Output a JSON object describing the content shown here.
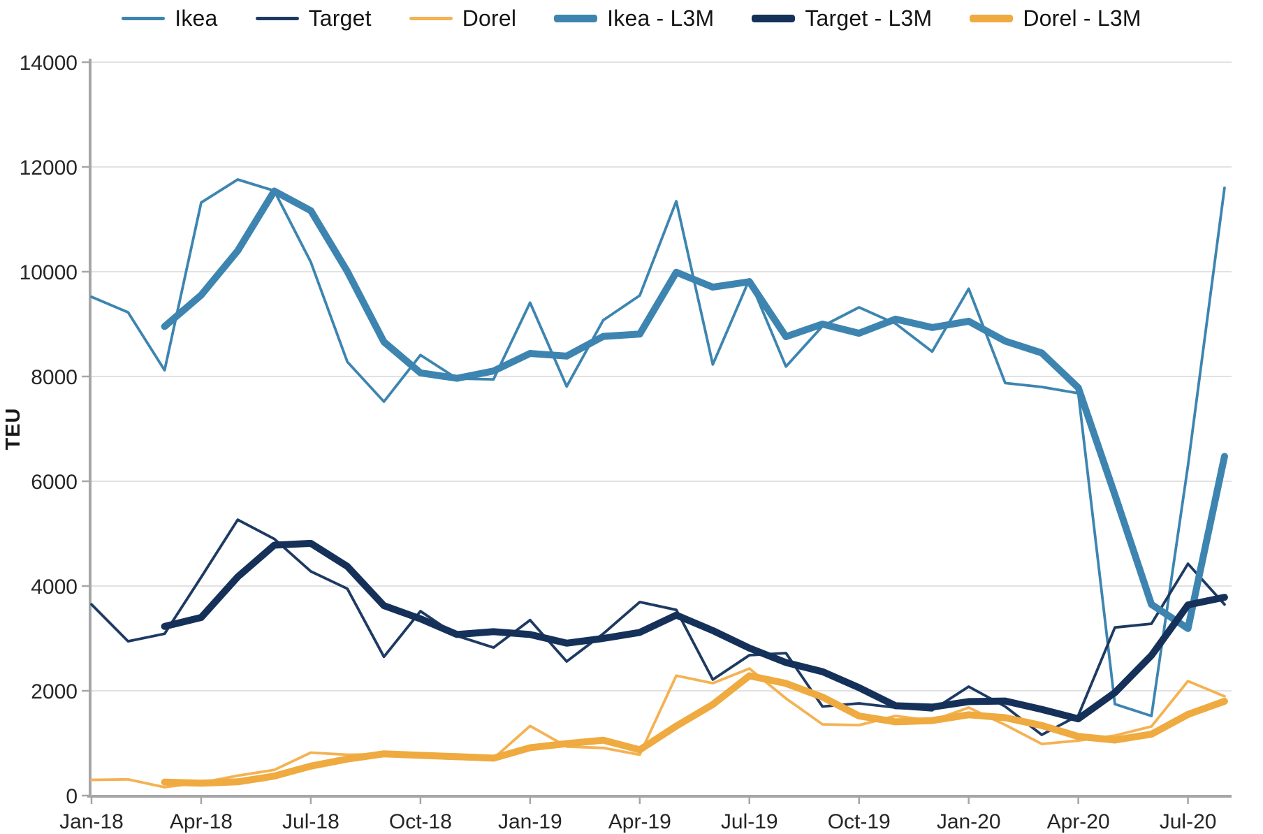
{
  "chart_data": {
    "type": "line",
    "title": "",
    "xlabel": "",
    "ylabel": "TEU",
    "unit": "TEU",
    "ylim": [
      0,
      14000
    ],
    "y_ticks": [
      0,
      2000,
      4000,
      6000,
      8000,
      10000,
      12000,
      14000
    ],
    "grid": "horizontal",
    "legend_position": "top",
    "months": [
      "Jan-18",
      "Feb-18",
      "Mar-18",
      "Apr-18",
      "May-18",
      "Jun-18",
      "Jul-18",
      "Aug-18",
      "Sep-18",
      "Oct-18",
      "Nov-18",
      "Dec-18",
      "Jan-19",
      "Feb-19",
      "Mar-19",
      "Apr-19",
      "May-19",
      "Jun-19",
      "Jul-19",
      "Aug-19",
      "Sep-19",
      "Oct-19",
      "Nov-19",
      "Dec-19",
      "Jan-20",
      "Feb-20",
      "Mar-20",
      "Apr-20",
      "May-20",
      "Jun-20",
      "Jul-20",
      "Aug-20"
    ],
    "x_tick_labels": [
      "Jan-18",
      "Apr-18",
      "Jul-18",
      "Oct-18",
      "Jan-19",
      "Apr-19",
      "Jul-19",
      "Oct-19",
      "Jan-20",
      "Apr-20",
      "Jul-20"
    ],
    "x_tick_month_indices": [
      0,
      3,
      6,
      9,
      12,
      15,
      18,
      21,
      24,
      27,
      30
    ],
    "colors": {
      "ikea": "#3d85b0",
      "ikea_l3m": "#3d85b0",
      "target": "#1d3a62",
      "target_l3m": "#15315a",
      "dorel": "#f4b254",
      "dorel_l3m": "#efaa40",
      "axis": "#a6a6a6",
      "grid": "#d9d9d9",
      "tick_label": "#262626"
    },
    "series": [
      {
        "name": "Ikea",
        "key": "ikea",
        "color": "#3d85b0",
        "weight": "thin",
        "values": [
          9520,
          9225,
          8120,
          11320,
          11760,
          11545,
          10185,
          8280,
          7520,
          8410,
          7960,
          7945,
          9410,
          7810,
          9075,
          9545,
          11345,
          8230,
          9855,
          8190,
          8960,
          9320,
          9010,
          8475,
          9675,
          7875,
          7800,
          7680,
          1745,
          1520,
          6300,
          11600
        ]
      },
      {
        "name": "Target",
        "key": "target",
        "color": "#1d3a62",
        "weight": "thin",
        "values": [
          3650,
          2945,
          3090,
          4170,
          5265,
          4900,
          4280,
          3950,
          2650,
          3520,
          3050,
          2825,
          3350,
          2560,
          3090,
          3695,
          3545,
          2215,
          2680,
          2720,
          1700,
          1760,
          1680,
          1630,
          2080,
          1700,
          1160,
          1530,
          3210,
          3280,
          4425,
          3650
        ]
      },
      {
        "name": "Dorel",
        "key": "dorel",
        "color": "#f4b254",
        "weight": "thin",
        "values": [
          300,
          310,
          160,
          245,
          380,
          490,
          820,
          780,
          790,
          735,
          700,
          710,
          1330,
          935,
          910,
          780,
          2290,
          2145,
          2425,
          1855,
          1360,
          1345,
          1520,
          1430,
          1680,
          1350,
          985,
          1050,
          1145,
          1320,
          2185,
          1895
        ]
      },
      {
        "name": "Ikea - L3M",
        "key": "ikea_l3m",
        "color": "#3d85b0",
        "weight": "thick",
        "values": [
          null,
          null,
          8955,
          9555,
          10400,
          11540,
          11165,
          10005,
          8660,
          8070,
          7965,
          8105,
          8440,
          8390,
          8765,
          8810,
          9990,
          9705,
          9810,
          8760,
          9000,
          8825,
          9095,
          8935,
          9055,
          8675,
          8450,
          7785,
          5740,
          3650,
          3190,
          6475
        ]
      },
      {
        "name": "Target - L3M",
        "key": "target_l3m",
        "color": "#15315a",
        "weight": "thick",
        "values": [
          null,
          null,
          3230,
          3400,
          4175,
          4780,
          4815,
          4375,
          3625,
          3375,
          3075,
          3130,
          3075,
          2910,
          3000,
          3115,
          3445,
          3150,
          2815,
          2540,
          2365,
          2060,
          1715,
          1690,
          1795,
          1805,
          1645,
          1465,
          1965,
          2675,
          3640,
          3785
        ]
      },
      {
        "name": "Dorel - L3M",
        "key": "dorel_l3m",
        "color": "#efaa40",
        "weight": "thick",
        "values": [
          null,
          null,
          257,
          238,
          262,
          372,
          563,
          697,
          797,
          768,
          742,
          715,
          913,
          992,
          1058,
          875,
          1327,
          1738,
          2287,
          2142,
          1880,
          1520,
          1408,
          1432,
          1543,
          1487,
          1338,
          1128,
          1060,
          1172,
          1550,
          1800
        ]
      }
    ]
  }
}
